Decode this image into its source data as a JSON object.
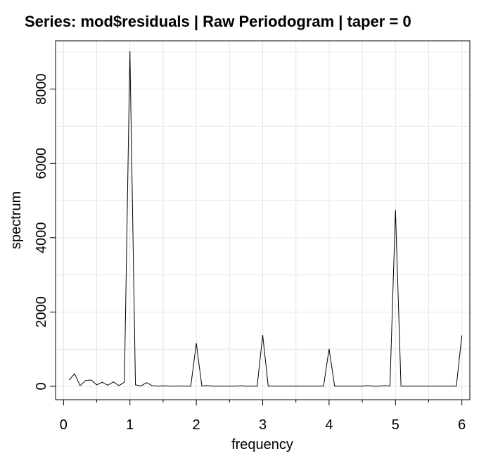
{
  "chart_data": {
    "type": "line",
    "title": "Series: mod$residuals  |  Raw Periodogram  |  taper = 0",
    "xlabel": "frequency",
    "ylabel": "spectrum",
    "xlim": [
      -0.12,
      6.12
    ],
    "ylim": [
      -360,
      9300
    ],
    "xticks": [
      0,
      1,
      2,
      3,
      4,
      5,
      6
    ],
    "xtick_labels": [
      "0",
      "1",
      "2",
      "3",
      "4",
      "5",
      "6"
    ],
    "yticks": [
      0,
      2000,
      4000,
      6000,
      8000
    ],
    "ytick_labels": [
      "0",
      "2000",
      "4000",
      "6000",
      "8000"
    ],
    "grid": true,
    "line_color": "#000000",
    "grid_color": "#e6e6e6",
    "series": [
      {
        "x": [
          0.0833,
          0.1667,
          0.25,
          0.3333,
          0.4167,
          0.5,
          0.5833,
          0.6667,
          0.75,
          0.8333,
          0.9167,
          1.0,
          1.0833,
          1.1667,
          1.25,
          1.3333,
          1.4167,
          1.5,
          1.5833,
          1.6667,
          1.75,
          1.8333,
          1.9167,
          2.0,
          2.0833,
          2.1667,
          2.25,
          2.3333,
          2.4167,
          2.5,
          2.5833,
          2.6667,
          2.75,
          2.8333,
          2.9167,
          3.0,
          3.0833,
          3.1667,
          3.25,
          3.3333,
          3.4167,
          3.5,
          3.5833,
          3.6667,
          3.75,
          3.8333,
          3.9167,
          4.0,
          4.0833,
          4.1667,
          4.25,
          4.3333,
          4.4167,
          4.5,
          4.5833,
          4.6667,
          4.75,
          4.8333,
          4.9167,
          5.0,
          5.0833,
          5.1667,
          5.25,
          5.3333,
          5.4167,
          5.5,
          5.5833,
          5.6667,
          5.75,
          5.8333,
          5.9167,
          6.0
        ],
        "values": [
          170,
          340,
          20,
          160,
          170,
          40,
          110,
          30,
          120,
          20,
          110,
          9020,
          40,
          10,
          100,
          20,
          5,
          15,
          8,
          5,
          10,
          5,
          5,
          1160,
          5,
          20,
          5,
          5,
          5,
          5,
          5,
          15,
          5,
          5,
          5,
          1380,
          5,
          5,
          5,
          5,
          5,
          5,
          5,
          5,
          5,
          5,
          5,
          1010,
          5,
          5,
          5,
          5,
          5,
          5,
          20,
          5,
          5,
          20,
          5,
          4750,
          5,
          5,
          5,
          5,
          5,
          5,
          5,
          5,
          5,
          5,
          5,
          1370
        ]
      }
    ]
  }
}
